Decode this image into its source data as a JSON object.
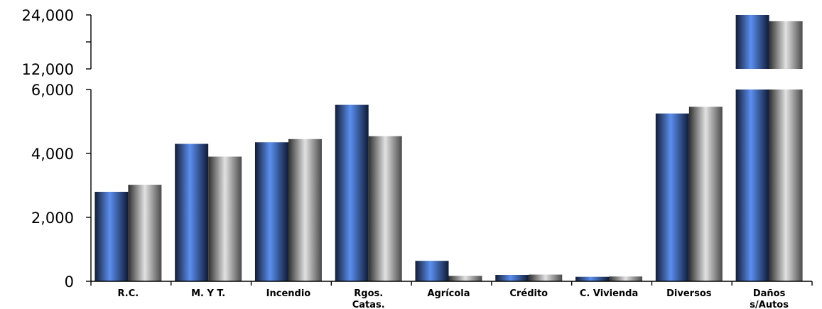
{
  "chart_data": {
    "type": "bar",
    "title": "",
    "xlabel": "",
    "ylabel": "",
    "axis_break": true,
    "ylim_lower": [
      0,
      6000
    ],
    "ylim_upper": [
      12000,
      24000
    ],
    "y_ticks_lower": [
      "0",
      "2,000",
      "4,000",
      "6,000"
    ],
    "y_ticks_upper": [
      "12,000",
      "24,000"
    ],
    "categories": [
      [
        "R.C."
      ],
      [
        "M. Y T."
      ],
      [
        "Incendio"
      ],
      [
        "Rgos.",
        "Catas."
      ],
      [
        "Agrícola"
      ],
      [
        "Crédito"
      ],
      [
        "C. Vivienda"
      ],
      [
        "Diversos"
      ],
      [
        "Daños",
        "s/Autos"
      ]
    ],
    "series": [
      {
        "values": [
          2800,
          4300,
          4350,
          5520,
          640,
          200,
          140,
          5250,
          24000
        ],
        "color": "#4a74d8"
      },
      {
        "values": [
          3020,
          3900,
          4450,
          4540,
          170,
          210,
          150,
          5460,
          22600
        ],
        "color": "#9a9a9a"
      }
    ],
    "legend": "none",
    "grid": false
  }
}
